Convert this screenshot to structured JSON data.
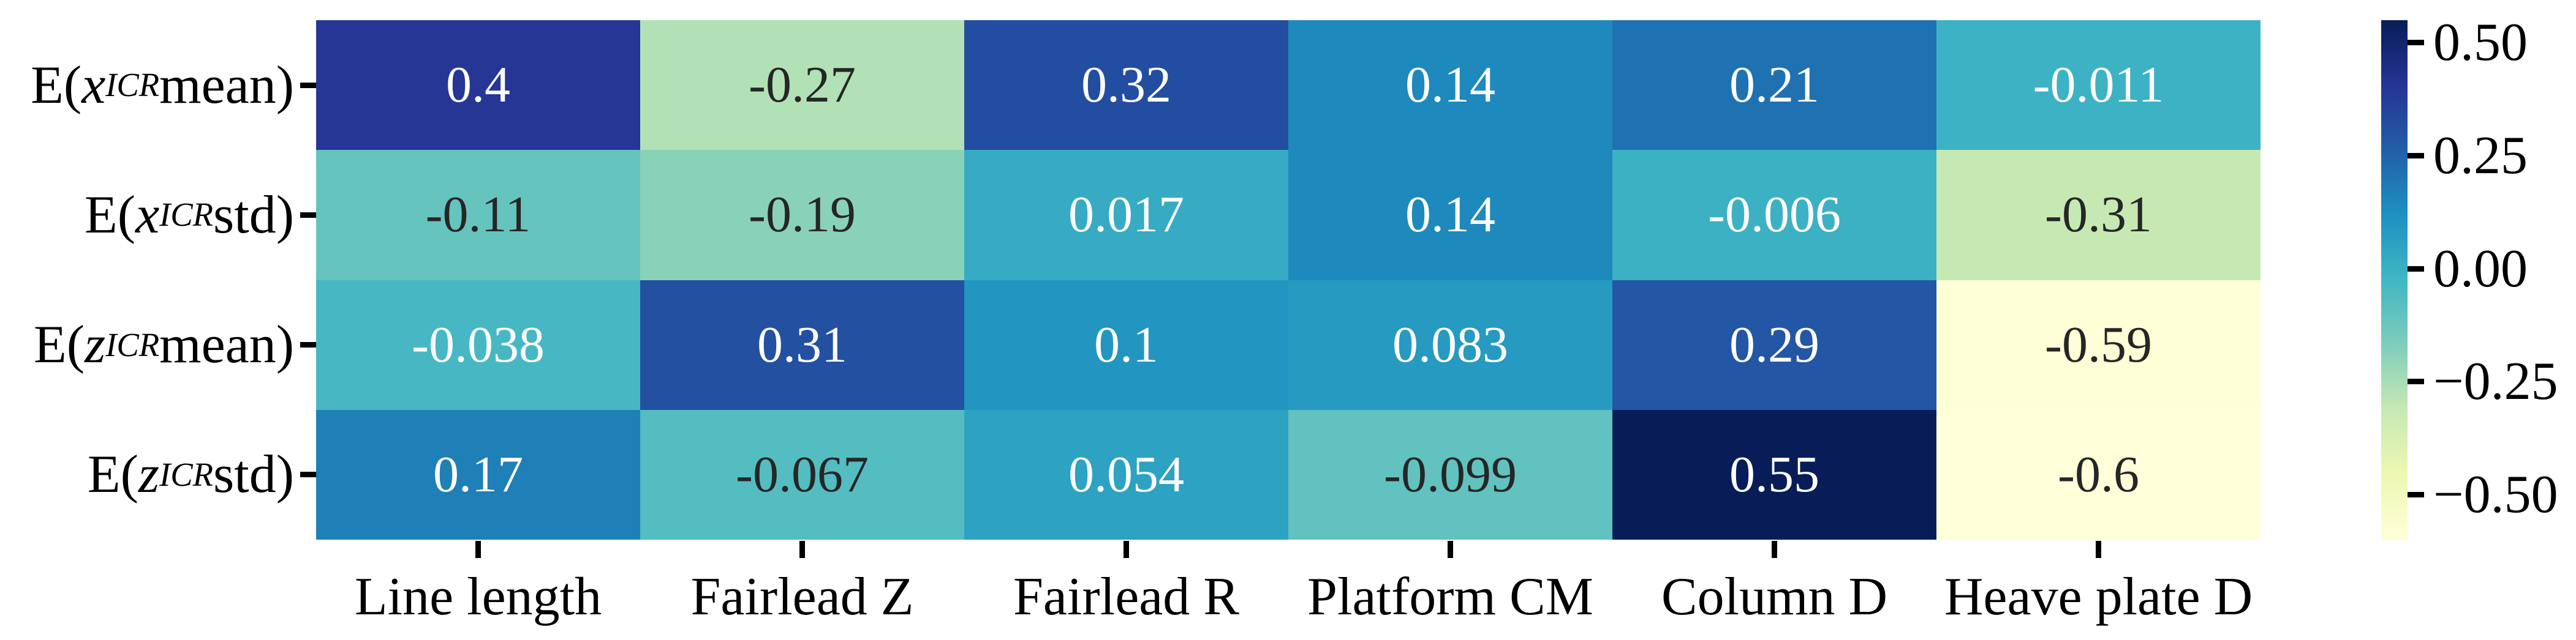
{
  "figure": {
    "background": "#ffffff",
    "kind": "correlation-heatmap"
  },
  "chart_data": {
    "type": "heatmap",
    "title": "",
    "x_tick_labels": [
      "Line length",
      "Fairlead Z",
      "Fairlead R",
      "Platform CM",
      "Column D",
      "Heave plate D"
    ],
    "y_tick_labels": [
      {
        "plain": "E(x_ICR mean)",
        "pre": "E(",
        "var": "x",
        "subscript": "ICR",
        "post": " mean)"
      },
      {
        "plain": "E(x_ICR std)",
        "pre": "E(",
        "var": "x",
        "subscript": "ICR",
        "post": " std)"
      },
      {
        "plain": "E(z_ICR mean)",
        "pre": "E(",
        "var": "z",
        "subscript": "ICR",
        "post": " mean)"
      },
      {
        "plain": "E(z_ICR std)",
        "pre": "E(",
        "var": "z",
        "subscript": "ICR",
        "post": " std)"
      }
    ],
    "values": [
      [
        0.4,
        -0.27,
        0.32,
        0.14,
        0.21,
        -0.011
      ],
      [
        -0.11,
        -0.19,
        0.017,
        0.14,
        -0.006,
        -0.31
      ],
      [
        -0.038,
        0.31,
        0.1,
        0.083,
        0.29,
        -0.59
      ],
      [
        0.17,
        -0.067,
        0.054,
        -0.099,
        0.55,
        -0.6
      ]
    ],
    "cell_labels": [
      [
        "0.4",
        "-0.27",
        "0.32",
        "0.14",
        "0.21",
        "-0.011"
      ],
      [
        "-0.11",
        "-0.19",
        "0.017",
        "0.14",
        "-0.006",
        "-0.31"
      ],
      [
        "-0.038",
        "0.31",
        "0.1",
        "0.083",
        "0.29",
        "-0.59"
      ],
      [
        "0.17",
        "-0.067",
        "0.054",
        "-0.099",
        "0.55",
        "-0.6"
      ]
    ],
    "vmin": -0.6,
    "vmax": 0.55,
    "colormap": {
      "name": "YlGnBu",
      "stops": [
        "#ffffd9",
        "#edf8b1",
        "#c7e9b4",
        "#7fcdbb",
        "#41b6c4",
        "#1d91c0",
        "#225ea8",
        "#253494",
        "#081d58"
      ]
    },
    "colorbar": {
      "position": "right",
      "tick_labels": [
        "0.50",
        "0.25",
        "0.00",
        "−0.25",
        "−0.50"
      ],
      "tick_values": [
        0.5,
        0.25,
        0.0,
        -0.25,
        -0.5
      ]
    },
    "annotation_text_colors": {
      "light": "#ffffff",
      "dark": "#262626"
    },
    "grid": false,
    "legend": null,
    "xlabel": "",
    "ylabel": ""
  }
}
